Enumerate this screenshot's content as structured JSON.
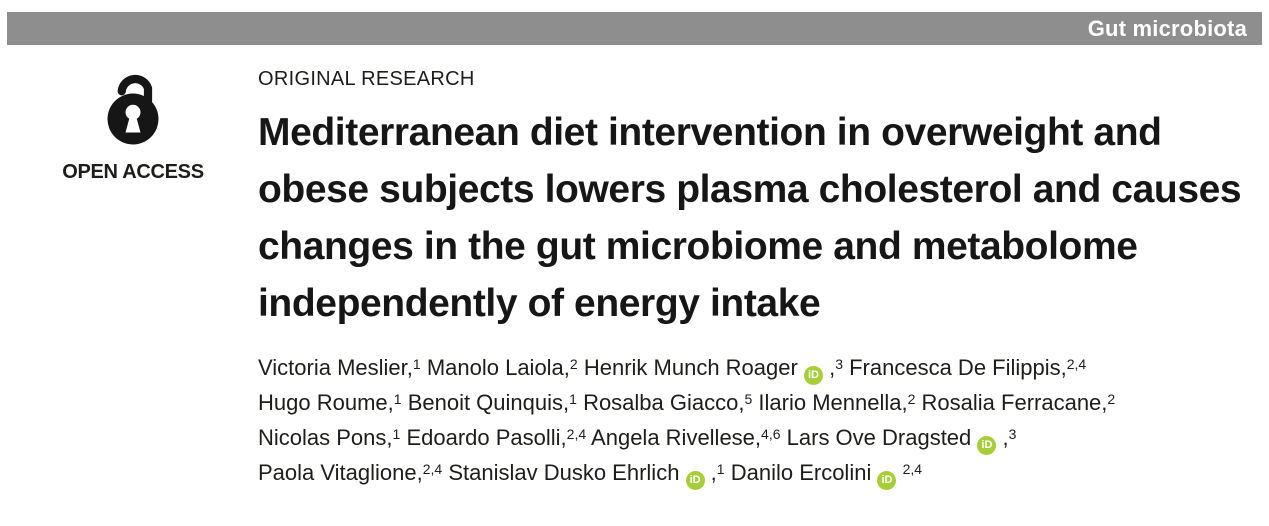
{
  "banner": {
    "topic": "Gut microbiota",
    "background_color": "#8e8e8e",
    "text_color": "#ffffff"
  },
  "open_access": {
    "label": "OPEN ACCESS",
    "icon": "open-padlock-icon"
  },
  "article": {
    "type": "ORIGINAL RESEARCH",
    "title_lines": [
      "Mediterranean diet intervention in overweight and",
      "obese subjects lowers plasma cholesterol and causes",
      "changes in the gut microbiome and metabolome",
      "independently of energy intake"
    ],
    "orcid_icon_text": "iD",
    "orcid_color": "#a6ce39",
    "authors": [
      {
        "name": "Victoria Meslier",
        "sup": "1",
        "orcid": false,
        "comma": true,
        "break_after": false
      },
      {
        "name": "Manolo Laiola",
        "sup": "2",
        "orcid": false,
        "comma": true,
        "break_after": false
      },
      {
        "name": "Henrik Munch Roager",
        "sup": "3",
        "orcid": true,
        "comma": true,
        "break_after": false
      },
      {
        "name": "Francesca De Filippis",
        "sup": "2,4",
        "orcid": false,
        "comma": true,
        "break_after": true
      },
      {
        "name": "Hugo Roume",
        "sup": "1",
        "orcid": false,
        "comma": true,
        "break_after": false
      },
      {
        "name": "Benoit Quinquis",
        "sup": "1",
        "orcid": false,
        "comma": true,
        "break_after": false
      },
      {
        "name": "Rosalba Giacco",
        "sup": "5",
        "orcid": false,
        "comma": true,
        "break_after": false
      },
      {
        "name": "Ilario Mennella",
        "sup": "2",
        "orcid": false,
        "comma": true,
        "break_after": false
      },
      {
        "name": "Rosalia Ferracane",
        "sup": "2",
        "orcid": false,
        "comma": true,
        "break_after": true
      },
      {
        "name": "Nicolas Pons",
        "sup": "1",
        "orcid": false,
        "comma": true,
        "break_after": false
      },
      {
        "name": "Edoardo Pasolli",
        "sup": "2,4",
        "orcid": false,
        "comma": true,
        "break_after": false
      },
      {
        "name": "Angela Rivellese",
        "sup": "4,6",
        "orcid": false,
        "comma": true,
        "break_after": false
      },
      {
        "name": "Lars Ove Dragsted",
        "sup": "3",
        "orcid": true,
        "comma": true,
        "break_after": true
      },
      {
        "name": "Paola Vitaglione",
        "sup": "2,4",
        "orcid": false,
        "comma": true,
        "break_after": false
      },
      {
        "name": "Stanislav Dusko Ehrlich",
        "sup": "1",
        "orcid": true,
        "comma": true,
        "break_after": false
      },
      {
        "name": "Danilo Ercolini",
        "sup": "2,4",
        "orcid": true,
        "comma": false,
        "break_after": false
      }
    ]
  }
}
